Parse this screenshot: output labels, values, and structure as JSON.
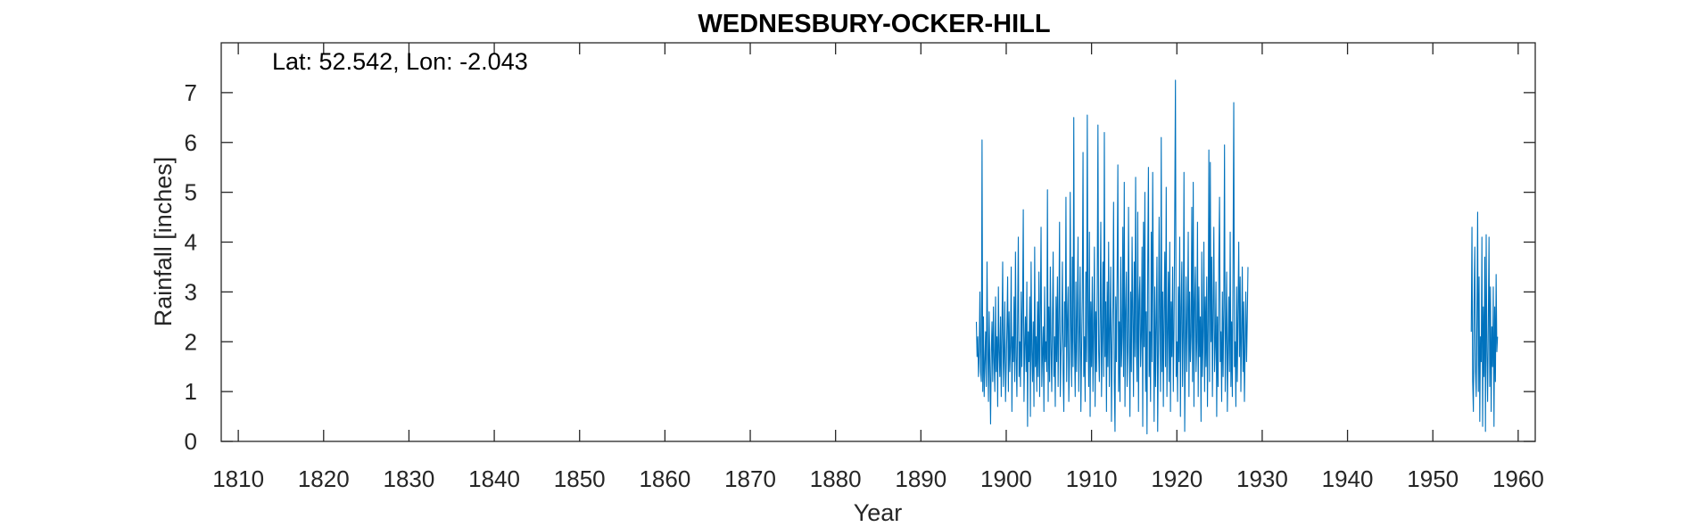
{
  "chart_data": {
    "type": "line",
    "title": "WEDNESBURY-OCKER-HILL",
    "annotation": "Lat: 52.542, Lon: -2.043",
    "xlabel": "Year",
    "ylabel": "Rainfall [inches]",
    "xlim": [
      1808,
      1962
    ],
    "ylim": [
      0,
      8
    ],
    "x_ticks": [
      1810,
      1820,
      1830,
      1840,
      1850,
      1860,
      1870,
      1880,
      1890,
      1900,
      1910,
      1920,
      1930,
      1940,
      1950,
      1960
    ],
    "y_ticks": [
      0,
      1,
      2,
      3,
      4,
      5,
      6,
      7
    ],
    "grid": false,
    "line_color": "#0072BD",
    "series": [
      {
        "frequency": "monthly",
        "segments": [
          {
            "start_year": 1896.5,
            "values": [
              2.4,
              1.7,
              2.1,
              1.3,
              1.8,
              3.0,
              1.4,
              1.2,
              6.05,
              1.0,
              2.5,
              0.9,
              1.6,
              2.2,
              1.1,
              3.6,
              1.9,
              0.8,
              2.6,
              1.5,
              0.35,
              1.8,
              2.4,
              1.2,
              2.7,
              1.6,
              1.0,
              2.9,
              1.4,
              2.1,
              0.7,
              3.1,
              1.8,
              1.3,
              2.5,
              0.9,
              2.2,
              3.6,
              1.1,
              1.7,
              2.8,
              0.8,
              1.5,
              2.3,
              3.3,
              1.0,
              2.6,
              1.4,
              1.9,
              3.5,
              0.6,
              2.1,
              1.6,
              2.9,
              1.2,
              3.8,
              1.7,
              0.9,
              2.4,
              4.1,
              1.3,
              2.0,
              1.1,
              3.0,
              1.5,
              2.7,
              4.65,
              0.8,
              1.9,
              2.5,
              1.4,
              3.2,
              0.3,
              2.2,
              1.6,
              2.9,
              0.5,
              3.6,
              1.8,
              1.2,
              2.4,
              0.7,
              3.9,
              1.5,
              2.1,
              1.0,
              2.8,
              1.3,
              3.4,
              0.9,
              2.6,
              4.3,
              1.1,
              1.8,
              2.3,
              0.6,
              3.1,
              1.6,
              2.0,
              1.4,
              5.05,
              0.8,
              2.7,
              1.2,
              3.5,
              1.9,
              1.0,
              2.4,
              3.8,
              1.3,
              2.1,
              0.7,
              2.9,
              1.6,
              3.3,
              1.1,
              2.5,
              4.4,
              0.9,
              1.7,
              2.2,
              3.6,
              1.4,
              0.6,
              2.8,
              1.9,
              4.9,
              1.2,
              2.4,
              3.1,
              0.8,
              1.6,
              5.0,
              2.3,
              1.1,
              3.7,
              1.5,
              6.5,
              2.0,
              0.9,
              3.2,
              1.4,
              2.7,
              4.1,
              1.0,
              2.2,
              3.5,
              0.6,
              1.8,
              2.9,
              5.8,
              1.3,
              2.1,
              0.8,
              3.4,
              1.6,
              6.55,
              2.4,
              1.1,
              4.2,
              0.5,
              2.8,
              1.5,
              3.3,
              1.0,
              2.2,
              3.9,
              0.7,
              2.6,
              1.4,
              3.1,
              6.35,
              1.8,
              1.2,
              2.5,
              4.4,
              0.9,
              2.0,
              3.6,
              1.3,
              6.2,
              1.7,
              2.8,
              0.6,
              3.2,
              1.5,
              4.0,
              1.1,
              2.3,
              3.5,
              0.4,
              1.9,
              2.7,
              4.8,
              1.2,
              0.2,
              2.9,
              1.6,
              3.3,
              5.55,
              1.0,
              2.4,
              0.8,
              3.7,
              1.5,
              2.1,
              4.3,
              1.3,
              5.2,
              0.7,
              2.6,
              3.4,
              1.1,
              1.8,
              4.7,
              2.2,
              0.5,
              3.0,
              1.4,
              4.1,
              2.5,
              0.9,
              3.6,
              1.7,
              5.3,
              2.0,
              1.2,
              4.6,
              0.6,
              2.8,
              3.3,
              1.5,
              2.1,
              3.9,
              0.3,
              4.4,
              1.9,
              5.0,
              1.0,
              2.6,
              0.15,
              3.5,
              5.5,
              1.3,
              2.2,
              0.8,
              4.2,
              1.6,
              5.4,
              2.9,
              0.4,
              3.1,
              1.1,
              2.4,
              3.7,
              0.2,
              1.8,
              4.5,
              2.3,
              1.0,
              6.1,
              1.4,
              3.0,
              0.7,
              2.6,
              3.8,
              1.5,
              5.1,
              0.9,
              2.1,
              3.4,
              1.2,
              4.0,
              0.6,
              2.8,
              1.7,
              3.5,
              1.0,
              2.3,
              4.6,
              7.25,
              1.3,
              2.0,
              0.8,
              3.1,
              1.6,
              4.1,
              0.5,
              2.7,
              3.6,
              1.1,
              2.2,
              5.4,
              0.2,
              1.9,
              3.3,
              1.4,
              2.5,
              4.2,
              0.9,
              3.0,
              1.6,
              2.1,
              4.7,
              1.2,
              5.2,
              0.7,
              2.8,
              3.5,
              1.4,
              2.0,
              4.4,
              0.9,
              3.1,
              1.7,
              2.5,
              0.4,
              3.8,
              1.3,
              2.2,
              4.0,
              1.0,
              2.9,
              1.5,
              3.3,
              0.7,
              2.4,
              5.85,
              1.2,
              5.6,
              2.0,
              3.7,
              0.9,
              2.6,
              4.3,
              1.4,
              1.9,
              3.2,
              0.5,
              2.5,
              1.1,
              3.6,
              4.9,
              1.6,
              2.2,
              0.8,
              3.0,
              1.3,
              2.7,
              5.95,
              1.0,
              2.1,
              3.4,
              0.6,
              1.8,
              2.9,
              1.4,
              4.2,
              1.1,
              2.4,
              0.9,
              3.6,
              6.8,
              1.5,
              2.0,
              0.7,
              3.1,
              1.2,
              2.6,
              4.0,
              1.7,
              3.3,
              1.0,
              2.2,
              3.5,
              1.4,
              2.8,
              0.8,
              1.9,
              3.0,
              1.6,
              2.4,
              3.5
            ]
          },
          {
            "start_year": 1954.5,
            "values": [
              2.2,
              4.3,
              1.2,
              0.6,
              2.8,
              3.9,
              1.4,
              0.9,
              2.5,
              4.6,
              1.0,
              3.3,
              0.4,
              2.1,
              1.6,
              4.1,
              0.3,
              2.7,
              1.3,
              3.7,
              0.2,
              4.15,
              1.8,
              0.8,
              2.4,
              4.1,
              1.1,
              3.1,
              0.6,
              2.3,
              1.5,
              3.1,
              0.3,
              2.7,
              1.2,
              3.35,
              1.8,
              2.1
            ]
          }
        ]
      }
    ]
  }
}
